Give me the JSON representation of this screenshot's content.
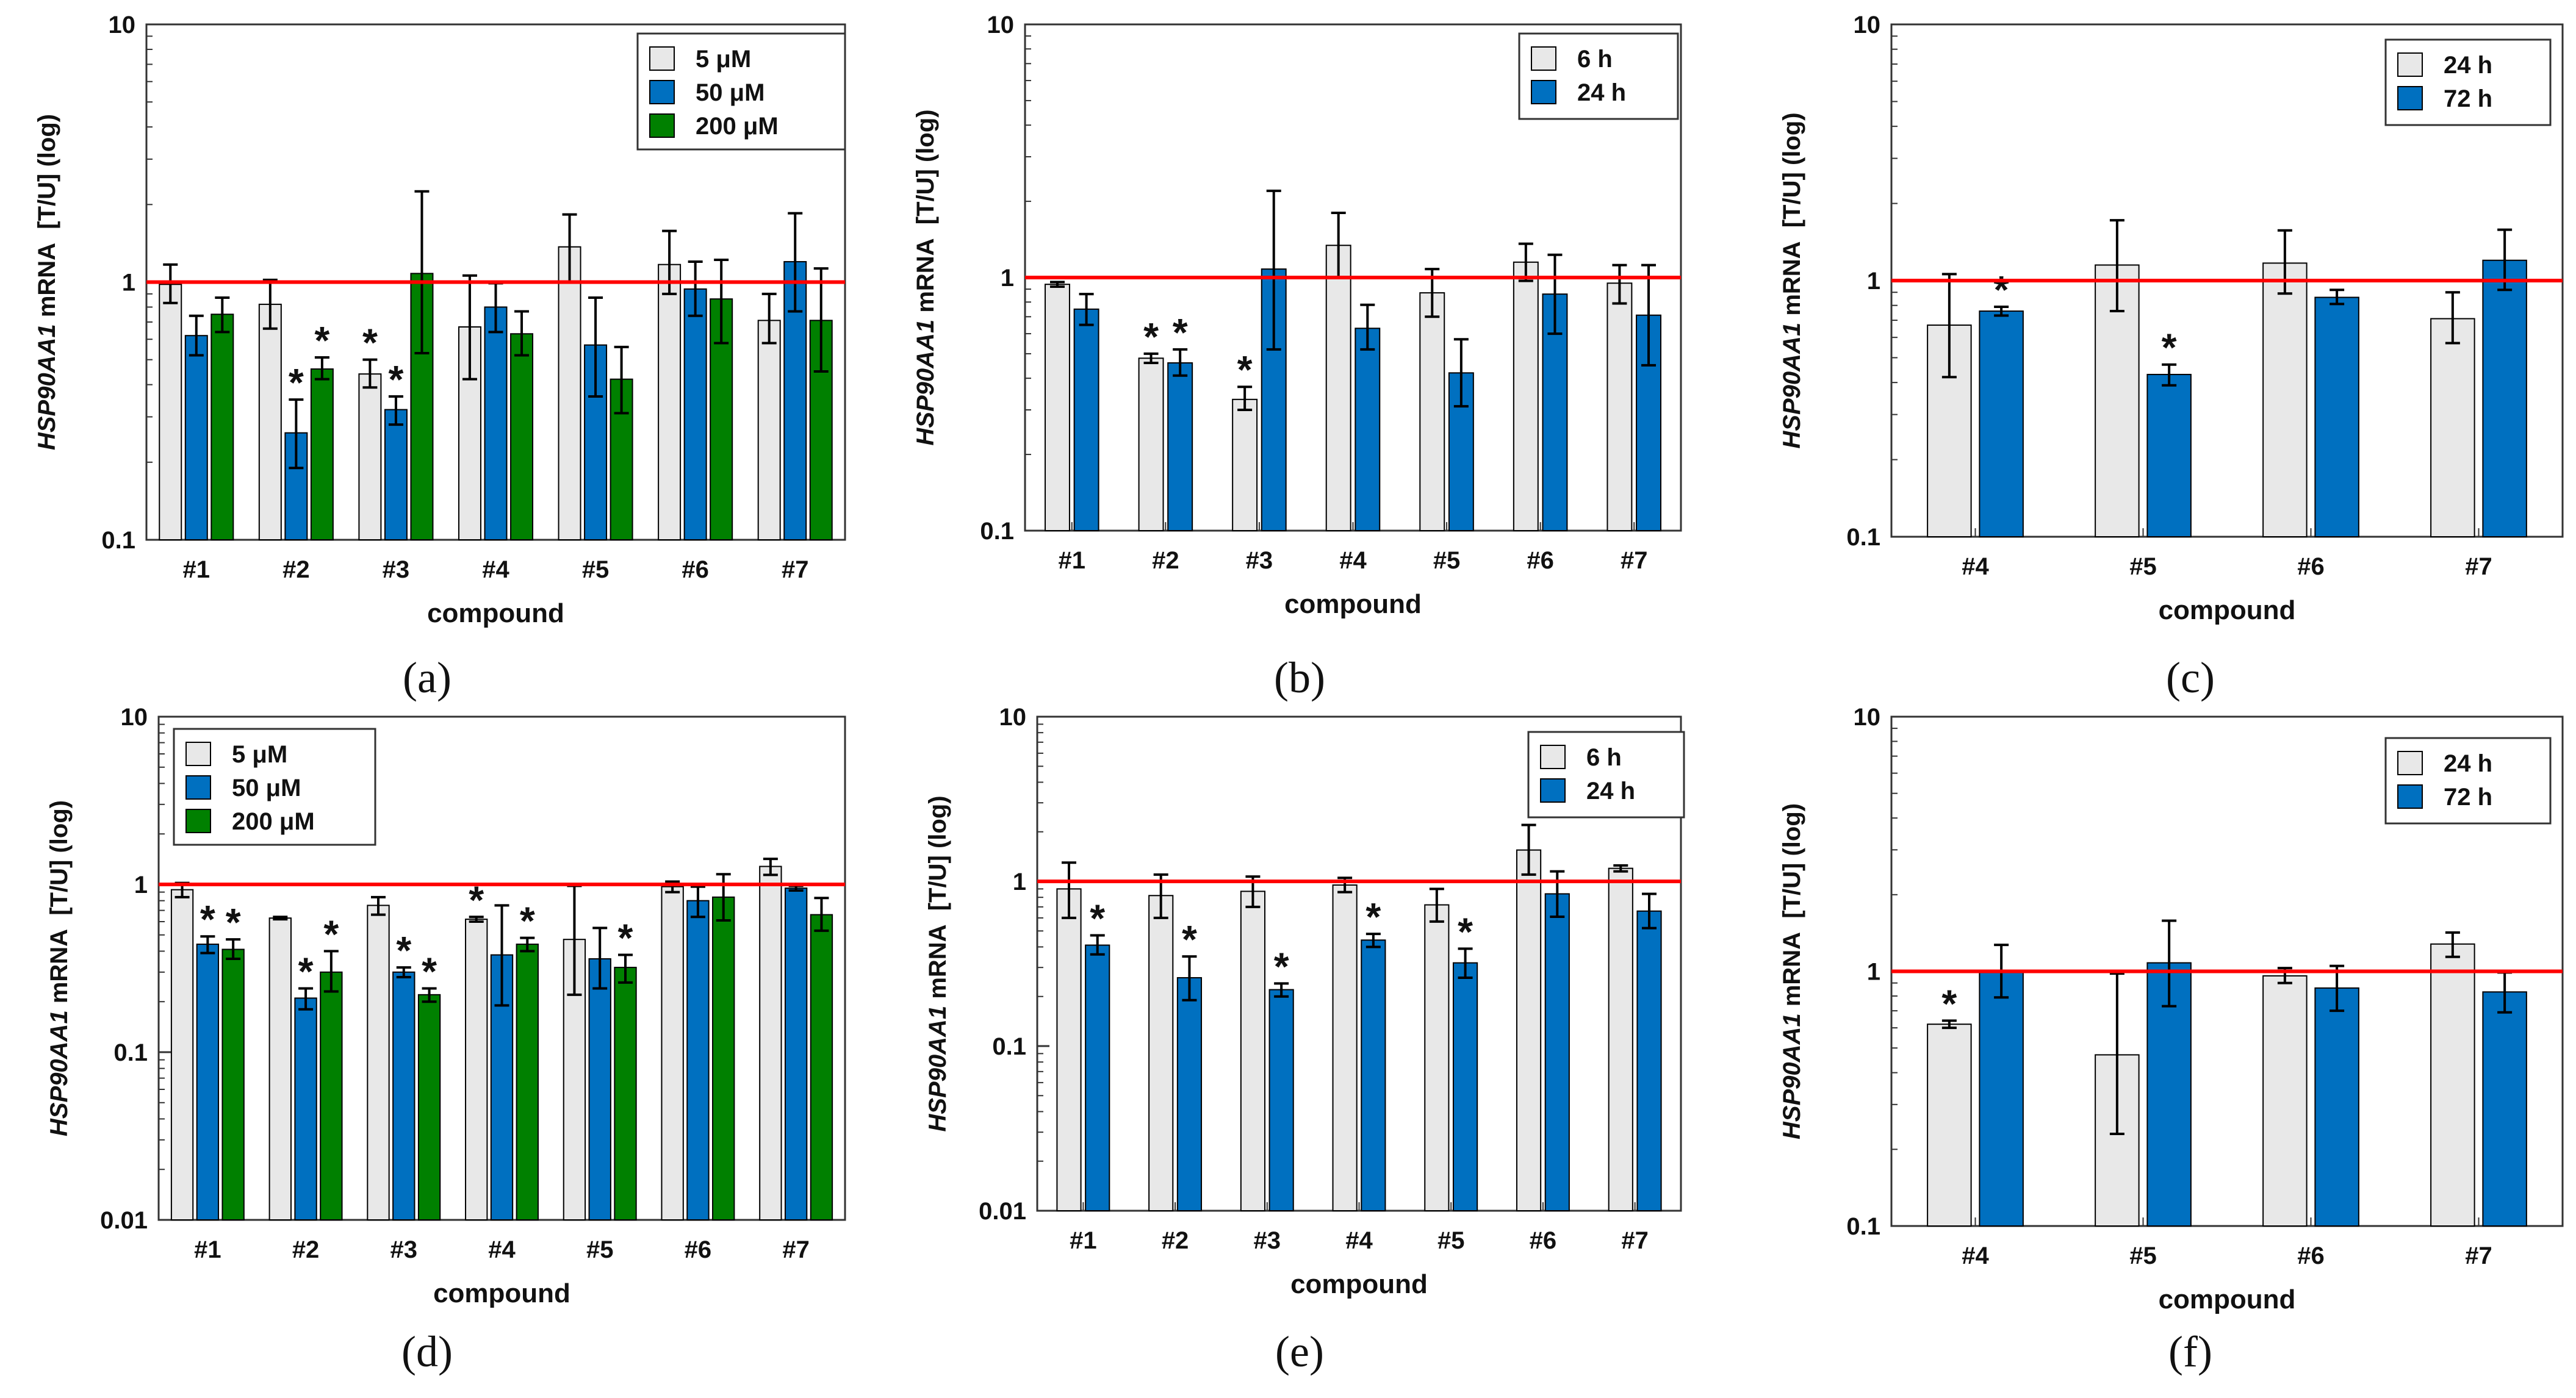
{
  "figure": {
    "y_axis_label_gene": "HSP90AA1",
    "y_axis_label_rest": " mRNA  [T/U] (log)"
  },
  "colors": {
    "light": "#e8e8e8",
    "blue": "#0070c0",
    "green": "#008000",
    "reference_line": "#ff0000",
    "edge": "#000000"
  },
  "chart_data": [
    {
      "panel": "(a)",
      "type": "bar",
      "scale": "log",
      "ylim": [
        0.1,
        10
      ],
      "yticks": [
        {
          "value": 0.1,
          "label": "0.1"
        },
        {
          "value": 1,
          "label": "1"
        },
        {
          "value": 10,
          "label": "10"
        }
      ],
      "xlabel": "compound",
      "ylabel": "HSP90AA1 mRNA  [T/U] (log)",
      "legend_position": "top-right",
      "reference_value": 1,
      "categories": [
        "#1",
        "#2",
        "#3",
        "#4",
        "#5",
        "#6",
        "#7"
      ],
      "series": [
        {
          "name": "5 μM",
          "color": "light",
          "values": [
            0.98,
            0.82,
            0.44,
            0.67,
            1.37,
            1.17,
            0.71
          ],
          "err_low": [
            0.83,
            0.66,
            0.39,
            0.42,
            1.0,
            0.9,
            0.58
          ],
          "err_high": [
            1.17,
            1.02,
            0.5,
            1.06,
            1.83,
            1.58,
            0.9
          ],
          "stars": [
            false,
            false,
            true,
            false,
            false,
            false,
            false
          ]
        },
        {
          "name": "50 μM",
          "color": "blue",
          "values": [
            0.62,
            0.26,
            0.32,
            0.8,
            0.57,
            0.94,
            1.2
          ],
          "err_low": [
            0.52,
            0.19,
            0.28,
            0.64,
            0.36,
            0.74,
            0.77
          ],
          "err_high": [
            0.74,
            0.35,
            0.36,
            0.99,
            0.87,
            1.2,
            1.85
          ],
          "stars": [
            false,
            true,
            true,
            false,
            false,
            false,
            false
          ]
        },
        {
          "name": "200 μM",
          "color": "green",
          "values": [
            0.75,
            0.46,
            1.08,
            0.63,
            0.42,
            0.86,
            0.71
          ],
          "err_low": [
            0.64,
            0.42,
            0.53,
            0.52,
            0.31,
            0.58,
            0.45
          ],
          "err_high": [
            0.87,
            0.51,
            2.25,
            0.77,
            0.56,
            1.22,
            1.13
          ],
          "stars": [
            false,
            true,
            false,
            false,
            false,
            false,
            false
          ]
        }
      ]
    },
    {
      "panel": "(b)",
      "type": "bar",
      "scale": "log",
      "ylim": [
        0.1,
        10
      ],
      "yticks": [
        {
          "value": 0.1,
          "label": "0.1"
        },
        {
          "value": 1,
          "label": "1"
        },
        {
          "value": 10,
          "label": "10"
        }
      ],
      "xlabel": "compound",
      "ylabel": "HSP90AA1 mRNA  [T/U] (log)",
      "legend_position": "top-right",
      "reference_value": 1,
      "categories": [
        "#1",
        "#2",
        "#3",
        "#4",
        "#5",
        "#6",
        "#7"
      ],
      "series": [
        {
          "name": "6 h",
          "color": "light",
          "values": [
            0.94,
            0.48,
            0.33,
            1.34,
            0.87,
            1.15,
            0.95
          ],
          "err_low": [
            0.92,
            0.46,
            0.3,
            1.0,
            0.7,
            0.97,
            0.79
          ],
          "err_high": [
            0.96,
            0.5,
            0.37,
            1.8,
            1.08,
            1.36,
            1.12
          ],
          "stars": [
            false,
            true,
            true,
            false,
            false,
            false,
            false
          ]
        },
        {
          "name": "24 h",
          "color": "blue",
          "values": [
            0.75,
            0.46,
            1.08,
            0.63,
            0.42,
            0.86,
            0.71
          ],
          "err_low": [
            0.65,
            0.41,
            0.52,
            0.52,
            0.31,
            0.6,
            0.45
          ],
          "err_high": [
            0.86,
            0.52,
            2.2,
            0.78,
            0.57,
            1.23,
            1.12
          ],
          "stars": [
            false,
            true,
            false,
            false,
            false,
            false,
            false
          ]
        }
      ]
    },
    {
      "panel": "(c)",
      "type": "bar",
      "scale": "log",
      "ylim": [
        0.1,
        10
      ],
      "yticks": [
        {
          "value": 0.1,
          "label": "0.1"
        },
        {
          "value": 1,
          "label": "1"
        },
        {
          "value": 10,
          "label": "10"
        }
      ],
      "xlabel": "compound",
      "ylabel": "HSP90AA1 mRNA  [T/U] (log)",
      "legend_position": "top-right",
      "reference_value": 1,
      "categories": [
        "#4",
        "#5",
        "#6",
        "#7"
      ],
      "series": [
        {
          "name": "24 h",
          "color": "light",
          "values": [
            0.67,
            1.15,
            1.17,
            0.71
          ],
          "err_low": [
            0.42,
            0.76,
            0.89,
            0.57
          ],
          "err_high": [
            1.06,
            1.72,
            1.57,
            0.9
          ],
          "stars": [
            false,
            false,
            false,
            false
          ]
        },
        {
          "name": "72 h",
          "color": "blue",
          "values": [
            0.76,
            0.43,
            0.86,
            1.2
          ],
          "err_low": [
            0.73,
            0.39,
            0.81,
            0.92
          ],
          "err_high": [
            0.79,
            0.47,
            0.92,
            1.58
          ],
          "stars": [
            true,
            true,
            false,
            false
          ]
        }
      ]
    },
    {
      "panel": "(d)",
      "type": "bar",
      "scale": "log",
      "ylim": [
        0.01,
        10
      ],
      "yticks": [
        {
          "value": 0.01,
          "label": "0.01"
        },
        {
          "value": 0.1,
          "label": "0.1"
        },
        {
          "value": 1,
          "label": "1"
        },
        {
          "value": 10,
          "label": "10"
        }
      ],
      "xlabel": "compound",
      "ylabel": "HSP90AA1 mRNA  [T/U] (log)",
      "legend_position": "top-left",
      "reference_value": 1,
      "categories": [
        "#1",
        "#2",
        "#3",
        "#4",
        "#5",
        "#6",
        "#7"
      ],
      "series": [
        {
          "name": "5 μM",
          "color": "light",
          "values": [
            0.93,
            0.63,
            0.75,
            0.62,
            0.47,
            0.97,
            1.28
          ],
          "err_low": [
            0.84,
            0.62,
            0.66,
            0.6,
            0.22,
            0.9,
            1.14
          ],
          "err_high": [
            1.02,
            0.64,
            0.84,
            0.64,
            0.98,
            1.04,
            1.42
          ],
          "stars": [
            false,
            false,
            false,
            true,
            false,
            false,
            false
          ]
        },
        {
          "name": "50 μM",
          "color": "blue",
          "values": [
            0.44,
            0.21,
            0.3,
            0.38,
            0.36,
            0.8,
            0.95
          ],
          "err_low": [
            0.39,
            0.18,
            0.28,
            0.19,
            0.24,
            0.64,
            0.92
          ],
          "err_high": [
            0.49,
            0.24,
            0.32,
            0.75,
            0.55,
            0.97,
            0.98
          ],
          "stars": [
            true,
            true,
            true,
            false,
            false,
            false,
            false
          ]
        },
        {
          "name": "200 μM",
          "color": "green",
          "values": [
            0.41,
            0.3,
            0.22,
            0.44,
            0.32,
            0.84,
            0.66
          ],
          "err_low": [
            0.36,
            0.23,
            0.2,
            0.4,
            0.26,
            0.61,
            0.53
          ],
          "err_high": [
            0.47,
            0.4,
            0.24,
            0.48,
            0.38,
            1.15,
            0.83
          ],
          "stars": [
            true,
            true,
            true,
            true,
            true,
            false,
            false
          ]
        }
      ]
    },
    {
      "panel": "(e)",
      "type": "bar",
      "scale": "log",
      "ylim": [
        0.01,
        10
      ],
      "yticks": [
        {
          "value": 0.01,
          "label": "0.01"
        },
        {
          "value": 0.1,
          "label": "0.1"
        },
        {
          "value": 1,
          "label": "1"
        },
        {
          "value": 10,
          "label": "10"
        }
      ],
      "xlabel": "compound",
      "ylabel": "HSP90AA1 mRNA  [T/U] (log)",
      "legend_position": "top-right",
      "reference_value": 1,
      "categories": [
        "#1",
        "#2",
        "#3",
        "#4",
        "#5",
        "#6",
        "#7"
      ],
      "series": [
        {
          "name": "6 h",
          "color": "light",
          "values": [
            0.9,
            0.82,
            0.87,
            0.95,
            0.72,
            1.55,
            1.2
          ],
          "err_low": [
            0.6,
            0.6,
            0.7,
            0.86,
            0.57,
            1.1,
            1.15
          ],
          "err_high": [
            1.3,
            1.1,
            1.07,
            1.05,
            0.9,
            2.2,
            1.25
          ],
          "stars": [
            false,
            false,
            false,
            false,
            false,
            false,
            false
          ]
        },
        {
          "name": "24 h",
          "color": "blue",
          "values": [
            0.41,
            0.26,
            0.22,
            0.44,
            0.32,
            0.84,
            0.66
          ],
          "err_low": [
            0.36,
            0.19,
            0.2,
            0.4,
            0.26,
            0.61,
            0.52
          ],
          "err_high": [
            0.47,
            0.35,
            0.24,
            0.48,
            0.39,
            1.15,
            0.84
          ],
          "stars": [
            true,
            true,
            true,
            true,
            true,
            false,
            false
          ]
        }
      ]
    },
    {
      "panel": "(f)",
      "type": "bar",
      "scale": "log",
      "ylim": [
        0.1,
        10
      ],
      "yticks": [
        {
          "value": 0.1,
          "label": "0.1"
        },
        {
          "value": 1,
          "label": "1"
        },
        {
          "value": 10,
          "label": "10"
        }
      ],
      "xlabel": "compound",
      "ylabel": "HSP90AA1 mRNA  [T/U] (log)",
      "legend_position": "top-right",
      "reference_value": 1,
      "categories": [
        "#4",
        "#5",
        "#6",
        "#7"
      ],
      "series": [
        {
          "name": "24 h",
          "color": "light",
          "values": [
            0.62,
            0.47,
            0.96,
            1.28
          ],
          "err_low": [
            0.6,
            0.23,
            0.9,
            1.14
          ],
          "err_high": [
            0.64,
            0.98,
            1.03,
            1.42
          ],
          "stars": [
            true,
            false,
            false,
            false
          ]
        },
        {
          "name": "72 h",
          "color": "blue",
          "values": [
            1.0,
            1.08,
            0.86,
            0.83
          ],
          "err_low": [
            0.79,
            0.73,
            0.7,
            0.69
          ],
          "err_high": [
            1.27,
            1.58,
            1.05,
            0.99
          ],
          "stars": [
            false,
            false,
            false,
            false
          ]
        }
      ]
    }
  ]
}
